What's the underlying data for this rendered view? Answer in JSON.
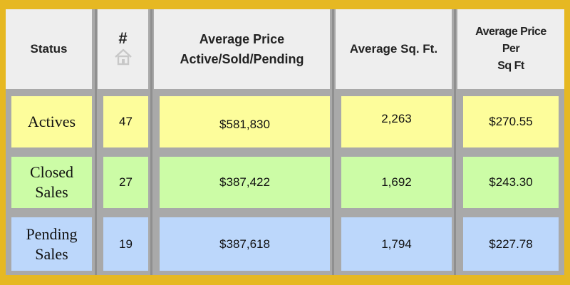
{
  "headers": {
    "status": "Status",
    "count": "#",
    "avg_price_line1": "Average Price",
    "avg_price_line2": "Active/Sold/Pending",
    "avg_sqft": "Average Sq. Ft.",
    "avg_ppsf_line1": "Average Price",
    "avg_ppsf_line2": "Per",
    "avg_ppsf_line3": "Sq Ft"
  },
  "rows": [
    {
      "status_line1": "Actives",
      "status_line2": "",
      "count": "47",
      "avg_price": "$581,830",
      "avg_sqft": "2,263",
      "avg_ppsf": "$270.55"
    },
    {
      "status_line1": "Closed",
      "status_line2": "Sales",
      "count": "27",
      "avg_price": "$387,422",
      "avg_sqft": "1,692",
      "avg_ppsf": "$243.30"
    },
    {
      "status_line1": "Pending",
      "status_line2": "Sales",
      "count": "19",
      "avg_price": "$387,618",
      "avg_sqft": "1,794",
      "avg_ppsf": "$227.78"
    }
  ],
  "colors": {
    "border": "#e6b822",
    "header_bg": "#eeeeee",
    "actives_bg": "#fdfd9b",
    "closed_bg": "#ccfca6",
    "pending_bg": "#bcd7fb",
    "grid": "#a9a9a9"
  },
  "icons": {
    "count_header": "house-icon"
  }
}
